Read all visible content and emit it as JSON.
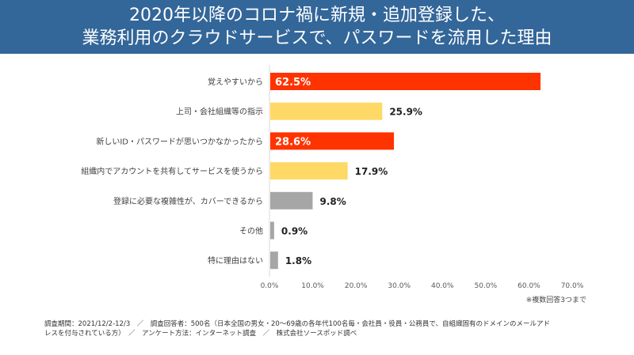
{
  "title": {
    "line1": "2020年以降のコロナ禍に新規・追加登録した、",
    "line2": "業務利用のクラウドサービスで、パスワードを流用した理由"
  },
  "chart_data": {
    "type": "bar",
    "orientation": "horizontal",
    "categories": [
      "覚えやすいから",
      "上司・会社組織等の指示",
      "新しいID・パスワードが思いつかなかったから",
      "組織内でアカウントを共有してサービスを使うから",
      "登録に必要な複雑性が、カバーできるから",
      "その他",
      "特に理由はない"
    ],
    "values": [
      62.5,
      25.9,
      28.6,
      17.9,
      9.8,
      0.9,
      1.8
    ],
    "value_labels": [
      "62.5%",
      "25.9%",
      "28.6%",
      "17.9%",
      "9.8%",
      "0.9%",
      "1.8%"
    ],
    "bar_colors": [
      "#ff3300",
      "#ffd966",
      "#ff3300",
      "#ffd966",
      "#a6a6a6",
      "#a6a6a6",
      "#a6a6a6"
    ],
    "label_inside": [
      true,
      false,
      true,
      false,
      false,
      false,
      false
    ],
    "xlim": [
      0,
      70
    ],
    "xticks": [
      "0.0%",
      "10.0%",
      "20.0%",
      "30.0%",
      "40.0%",
      "50.0%",
      "60.0%",
      "70.0%"
    ],
    "xlabel": "",
    "ylabel": "",
    "title": "",
    "grid": false
  },
  "note": "※複数回答3つまで",
  "footer": {
    "line1": "調査期間：2021/12/2-12/3　／　調査回答者：500名（日本全国の男女・20～69歳の各年代100名毎・会社員・役員・公務員で、自組織固有のドメインのメールアド",
    "line2": "レスを付与されている方）　／　アンケート方法：インターネット調査　／　株式会社ソースポッド調べ"
  }
}
